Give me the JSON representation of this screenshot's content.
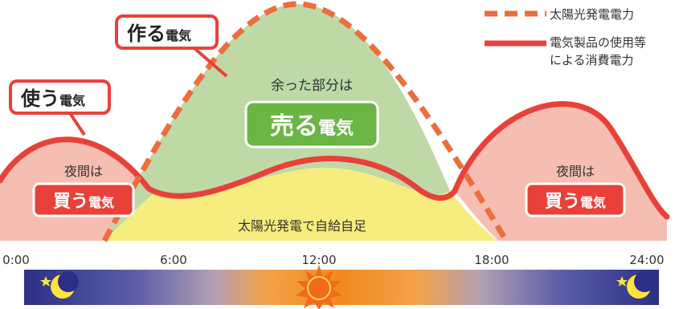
{
  "legend": {
    "solar_label": "太陽光発電電力",
    "consumption_label_1": "電気製品の使用等",
    "consumption_label_2": "による消費電力"
  },
  "callouts": {
    "make_big": "作る",
    "make_small": "電気",
    "use_big": "使う",
    "use_small": "電気"
  },
  "surplus": {
    "caption": "余った部分は",
    "sell_big": "売る",
    "sell_small": "電気"
  },
  "night_left": {
    "caption": "夜間は",
    "buy_big": "買う",
    "buy_small": "電気"
  },
  "night_right": {
    "caption": "夜間は",
    "buy_big": "買う",
    "buy_small": "電気"
  },
  "self_consumption": "太陽光発電で自給自足",
  "time_axis": {
    "ticks": [
      "0:00",
      "6:00",
      "12:00",
      "18:00",
      "24:00"
    ]
  },
  "icons": {
    "left": "moon-star-icon",
    "center": "sun-icon",
    "right": "moon-star-icon"
  },
  "colors": {
    "accent_red": "#e8413a",
    "solar_orange": "#ec6e3c",
    "surplus_green": "#bfd9a6",
    "sell_green": "#6bb545",
    "self_yellow": "#f6ed7e",
    "night_pink": "#f6bdb2"
  }
}
